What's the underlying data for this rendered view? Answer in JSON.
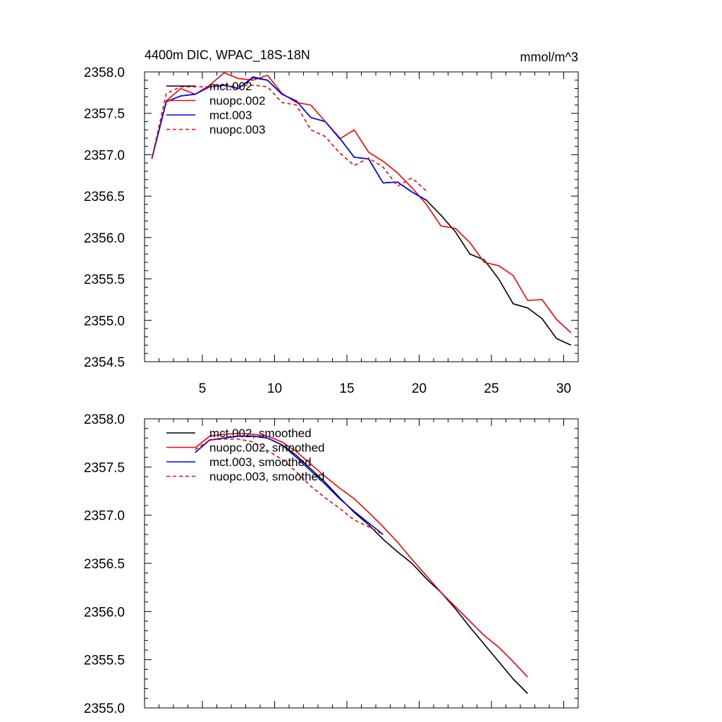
{
  "chart_data": [
    {
      "type": "line",
      "title": "4400m DIC, WPAC_18S-18N",
      "units": "mmol/m^3",
      "xlabel": "",
      "ylabel": "",
      "xlim": [
        1,
        31
      ],
      "ylim": [
        2354.5,
        2358.0
      ],
      "x_ticks": [
        5,
        10,
        15,
        20,
        25,
        30
      ],
      "x_tick_labels": [
        "5",
        "10",
        "15",
        "20",
        "25",
        "30"
      ],
      "y_ticks": [
        2354.5,
        2355.0,
        2355.5,
        2356.0,
        2356.5,
        2357.0,
        2357.5,
        2358.0
      ],
      "y_tick_labels": [
        "2354.5",
        "2355.0",
        "2355.5",
        "2356.0",
        "2356.5",
        "2357.0",
        "2357.5",
        "2358.0"
      ],
      "legend_position": "top-left",
      "grid": false,
      "series": [
        {
          "name": "mct.002",
          "color": "#000000",
          "dash": "solid",
          "x": [
            1.5,
            2.5,
            3.5,
            4.5,
            5.5,
            6.5,
            7.5,
            8.5,
            9.5,
            10.5,
            11.5,
            12.5,
            13.5,
            14.5,
            15.5,
            16.5,
            17.5,
            18.5,
            19.5,
            20.5,
            21.5,
            22.5,
            23.5,
            24.5,
            25.5,
            26.5,
            27.5,
            28.5,
            29.5,
            30.5
          ],
          "y": [
            2356.95,
            2357.64,
            2357.71,
            2357.73,
            2357.82,
            2357.84,
            2357.8,
            2357.93,
            2357.9,
            2357.73,
            2357.65,
            2357.45,
            2357.4,
            2357.2,
            2356.97,
            2356.95,
            2356.66,
            2356.67,
            2356.55,
            2356.45,
            2356.27,
            2356.07,
            2355.8,
            2355.73,
            2355.5,
            2355.2,
            2355.15,
            2355.02,
            2354.78,
            2354.7
          ]
        },
        {
          "name": "nuopc.002",
          "color": "#ff0000",
          "dash": "solid",
          "x": [
            1.5,
            2.5,
            3.5,
            4.5,
            5.5,
            6.5,
            7.5,
            8.5,
            9.5,
            10.5,
            11.5,
            12.5,
            13.5,
            14.5,
            15.5,
            16.5,
            17.5,
            18.5,
            19.5,
            20.5,
            21.5,
            22.5,
            23.5,
            24.5,
            25.5,
            26.5,
            27.5,
            28.5,
            29.5,
            30.5
          ],
          "y": [
            2356.95,
            2357.65,
            2357.8,
            2357.73,
            2357.84,
            2357.99,
            2357.92,
            2357.9,
            2357.96,
            2357.74,
            2357.63,
            2357.6,
            2357.4,
            2357.19,
            2357.3,
            2357.03,
            2356.92,
            2356.78,
            2356.6,
            2356.4,
            2356.14,
            2356.11,
            2355.94,
            2355.7,
            2355.66,
            2355.54,
            2355.24,
            2355.25,
            2355.01,
            2354.85
          ]
        },
        {
          "name": "mct.003",
          "color": "#0000ff",
          "dash": "solid",
          "x": [
            1.5,
            2.5,
            3.5,
            4.5,
            5.5,
            6.5,
            7.5,
            8.5,
            9.5,
            10.5,
            11.5,
            12.5,
            13.5,
            14.5,
            15.5,
            16.5,
            17.5,
            18.5,
            19.5,
            20.5
          ],
          "y": [
            2356.95,
            2357.64,
            2357.71,
            2357.73,
            2357.82,
            2357.84,
            2357.8,
            2357.94,
            2357.9,
            2357.73,
            2357.65,
            2357.45,
            2357.4,
            2357.2,
            2356.97,
            2356.95,
            2356.66,
            2356.67,
            2356.55,
            2356.45
          ]
        },
        {
          "name": "nuopc.003",
          "color": "#ff0000",
          "dash": "dashed",
          "x": [
            1.5,
            2.5,
            3.5,
            4.5,
            5.5,
            6.5,
            7.5,
            8.5,
            9.5,
            10.5,
            11.5,
            12.5,
            13.5,
            14.5,
            15.5,
            16.5,
            17.5,
            18.5,
            19.5,
            20.5
          ],
          "y": [
            2356.95,
            2357.74,
            2357.82,
            2357.82,
            2357.82,
            2357.83,
            2357.83,
            2357.84,
            2357.82,
            2357.63,
            2357.6,
            2357.3,
            2357.22,
            2357.02,
            2356.87,
            2356.96,
            2356.85,
            2356.62,
            2356.72,
            2356.56
          ]
        }
      ]
    },
    {
      "type": "line",
      "title": "",
      "xlabel": "",
      "ylabel": "",
      "xlim": [
        1,
        31
      ],
      "ylim": [
        2355.0,
        2358.0
      ],
      "x_ticks": [
        5,
        10,
        15,
        20,
        25,
        30
      ],
      "x_tick_labels": [],
      "y_ticks": [
        2355.0,
        2355.5,
        2356.0,
        2356.5,
        2357.0,
        2357.5,
        2358.0
      ],
      "y_tick_labels": [
        "2355.0",
        "2355.5",
        "2356.0",
        "2356.5",
        "2357.0",
        "2357.5",
        "2358.0"
      ],
      "legend_position": "top-left",
      "grid": false,
      "series": [
        {
          "name": "mct.002, smoothed",
          "color": "#000000",
          "dash": "solid",
          "x": [
            4.5,
            5.5,
            6.5,
            7.5,
            8.5,
            9.5,
            10.5,
            11.5,
            12.5,
            13.5,
            14.5,
            15.5,
            16.5,
            17.5,
            18.5,
            19.5,
            20.5,
            21.5,
            22.5,
            23.5,
            24.5,
            25.5,
            26.5,
            27.5
          ],
          "y": [
            2357.65,
            2357.78,
            2357.8,
            2357.82,
            2357.82,
            2357.8,
            2357.73,
            2357.62,
            2357.48,
            2357.34,
            2357.18,
            2357.03,
            2356.9,
            2356.75,
            2356.62,
            2356.5,
            2356.34,
            2356.2,
            2356.03,
            2355.84,
            2355.66,
            2355.48,
            2355.3,
            2355.15
          ]
        },
        {
          "name": "nuopc.002, smoothed",
          "color": "#ff0000",
          "dash": "solid",
          "x": [
            4.5,
            5.5,
            6.5,
            7.5,
            8.5,
            9.5,
            10.5,
            11.5,
            12.5,
            13.5,
            14.5,
            15.5,
            16.5,
            17.5,
            18.5,
            19.5,
            20.5,
            21.5,
            22.5,
            23.5,
            24.5,
            25.5,
            26.5,
            27.5
          ],
          "y": [
            2357.7,
            2357.82,
            2357.84,
            2357.85,
            2357.84,
            2357.82,
            2357.76,
            2357.66,
            2357.53,
            2357.4,
            2357.28,
            2357.17,
            2357.03,
            2356.88,
            2356.72,
            2356.54,
            2356.37,
            2356.2,
            2356.05,
            2355.9,
            2355.75,
            2355.63,
            2355.48,
            2355.32
          ]
        },
        {
          "name": "mct.003, smoothed",
          "color": "#0000ff",
          "dash": "solid",
          "x": [
            4.5,
            5.5,
            6.5,
            7.5,
            8.5,
            9.5,
            10.5,
            11.5,
            12.5,
            13.5,
            14.5,
            15.5,
            16.5,
            17.5
          ],
          "y": [
            2357.65,
            2357.78,
            2357.8,
            2357.82,
            2357.82,
            2357.8,
            2357.73,
            2357.6,
            2357.46,
            2357.32,
            2357.17,
            2357.04,
            2356.92,
            2356.8
          ]
        },
        {
          "name": "nuopc.003, smoothed",
          "color": "#ff0000",
          "dash": "dashed",
          "x": [
            4.5,
            5.5,
            6.5,
            7.5,
            8.5,
            9.5,
            10.5,
            11.5,
            12.5,
            13.5,
            14.5,
            15.5,
            16.5,
            17.5
          ],
          "y": [
            2357.68,
            2357.78,
            2357.79,
            2357.79,
            2357.76,
            2357.67,
            2357.58,
            2357.45,
            2357.3,
            2357.18,
            2357.07,
            2356.95,
            2356.88,
            2356.8
          ]
        }
      ]
    }
  ]
}
